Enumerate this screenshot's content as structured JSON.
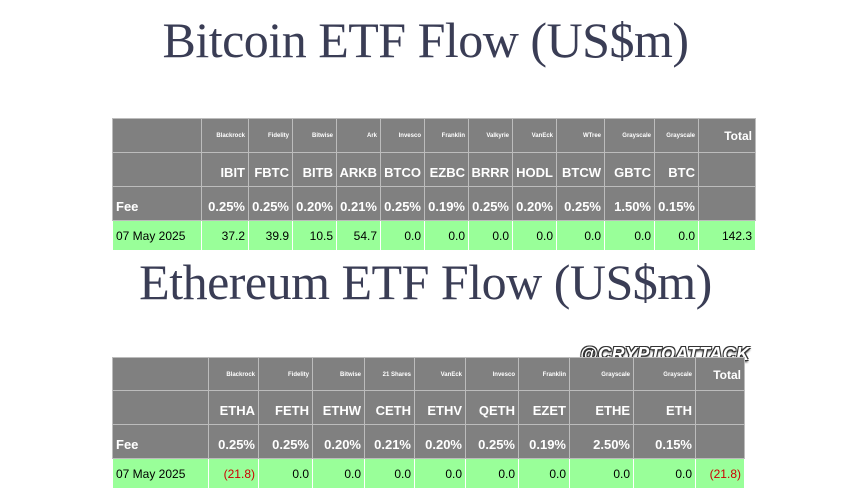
{
  "btc": {
    "title": "Bitcoin ETF Flow (US$m)",
    "issuers": [
      "Blackrock",
      "Fidelity",
      "Bitwise",
      "Ark",
      "Invesco",
      "Franklin",
      "Valkyrie",
      "VanEck",
      "WTree",
      "Grayscale",
      "Grayscale"
    ],
    "total_label": "Total",
    "tickers": [
      "IBIT",
      "FBTC",
      "BITB",
      "ARKB",
      "BTCO",
      "EZBC",
      "BRRR",
      "HODL",
      "BTCW",
      "GBTC",
      "BTC"
    ],
    "fee_label": "Fee",
    "fees": [
      "0.25%",
      "0.25%",
      "0.20%",
      "0.21%",
      "0.25%",
      "0.19%",
      "0.25%",
      "0.20%",
      "0.25%",
      "1.50%",
      "0.15%"
    ],
    "date": "07 May 2025",
    "flows": [
      "37.2",
      "39.9",
      "10.5",
      "54.7",
      "0.0",
      "0.0",
      "0.0",
      "0.0",
      "0.0",
      "0.0",
      "0.0"
    ],
    "total": "142.3"
  },
  "eth": {
    "title": "Ethereum ETF Flow (US$m)",
    "issuers": [
      "Blackrock",
      "Fidelity",
      "Bitwise",
      "21 Shares",
      "VanEck",
      "Invesco",
      "Franklin",
      "Grayscale",
      "Grayscale"
    ],
    "total_label": "Total",
    "tickers": [
      "ETHA",
      "FETH",
      "ETHW",
      "CETH",
      "ETHV",
      "QETH",
      "EZET",
      "ETHE",
      "ETH"
    ],
    "fee_label": "Fee",
    "fees": [
      "0.25%",
      "0.25%",
      "0.20%",
      "0.21%",
      "0.20%",
      "0.25%",
      "0.19%",
      "2.50%",
      "0.15%"
    ],
    "date": "07 May 2025",
    "flows": [
      "(21.8)",
      "0.0",
      "0.0",
      "0.0",
      "0.0",
      "0.0",
      "0.0",
      "0.0",
      "0.0"
    ],
    "total": "(21.8)"
  },
  "watermark": "@CRYPTOATTACK",
  "colors": {
    "header_bg": "#808080",
    "flow_bg": "#99ff99",
    "negative": "#cc0000",
    "title": "#3a3d55"
  }
}
